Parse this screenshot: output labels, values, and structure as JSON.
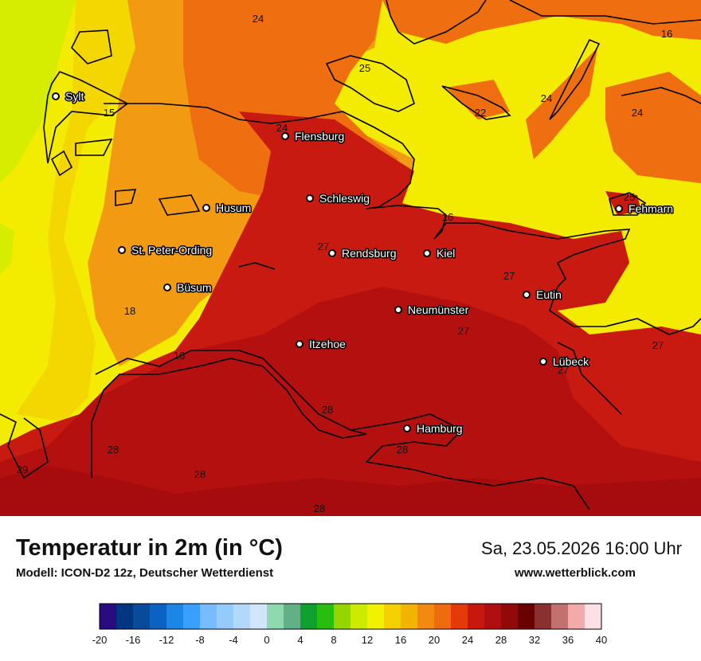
{
  "map": {
    "cities": [
      {
        "name": "Sylt"
      },
      {
        "name": "Flensburg"
      },
      {
        "name": "Schleswig"
      },
      {
        "name": "Husum"
      },
      {
        "name": "St. Peter-Ording"
      },
      {
        "name": "Rendsburg"
      },
      {
        "name": "Kiel"
      },
      {
        "name": "Büsum"
      },
      {
        "name": "Neumünster"
      },
      {
        "name": "Eutin"
      },
      {
        "name": "Fehmarn"
      },
      {
        "name": "Itzehoe"
      },
      {
        "name": "Lübeck"
      },
      {
        "name": "Hamburg"
      }
    ],
    "values": [
      "24",
      "25",
      "24",
      "22",
      "24",
      "16",
      "15",
      "24",
      "25",
      "16",
      "27",
      "27",
      "18",
      "27",
      "16",
      "27",
      "27",
      "28",
      "28",
      "28",
      "29",
      "28",
      "28"
    ]
  },
  "footer": {
    "title": "Temperatur in 2m (in °C)",
    "subtitle": "Modell: ICON-D2 12z, Deutscher Wetterdienst",
    "datetime": "Sa, 23.05.2026 16:00 Uhr",
    "website": "www.wetterblick.com"
  },
  "legend": {
    "ticks": [
      "-20",
      "-16",
      "-12",
      "-8",
      "-4",
      "0",
      "4",
      "8",
      "12",
      "16",
      "20",
      "24",
      "28",
      "32",
      "36",
      "40"
    ],
    "colors": [
      "#2a0a80",
      "#003580",
      "#0a4a9a",
      "#0a62c4",
      "#1a86e8",
      "#3aa0ff",
      "#78bcff",
      "#95cbfb",
      "#b2d8fb",
      "#d2e6fb",
      "#90d8b0",
      "#62b088",
      "#10a030",
      "#28be10",
      "#96d600",
      "#cdeb00",
      "#f2f200",
      "#f4d000",
      "#f2b400",
      "#f28a10",
      "#f06a10",
      "#e43a0a",
      "#c8180e",
      "#b00f12",
      "#900a0a",
      "#6a0000",
      "#8a3030",
      "#c27070",
      "#f3aaaa",
      "#fde0e6"
    ]
  },
  "colors": {
    "t15": "#d6ec00",
    "t16": "#f4ec00",
    "t18": "#f4d600",
    "t22": "#f29a12",
    "t24": "#ef6e10",
    "t25": "#e84e10",
    "t27": "#c81a10",
    "t28": "#b51010",
    "t29": "#a60c0e"
  }
}
